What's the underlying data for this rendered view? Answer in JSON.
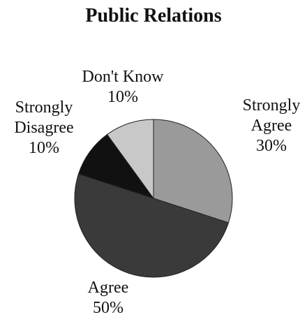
{
  "chart_data": {
    "type": "pie",
    "title": "Public Relations",
    "slices": [
      {
        "label": "Strongly Agree",
        "value": 30,
        "value_label": "30%",
        "color": "#9a9a9a"
      },
      {
        "label": "Agree",
        "value": 50,
        "value_label": "50%",
        "color": "#3a3a3a"
      },
      {
        "label": "Strongly Disagree",
        "value": 10,
        "value_label": "10%",
        "color": "#111111"
      },
      {
        "label": "Don't Know",
        "value": 10,
        "value_label": "10%",
        "color": "#c8c8c8"
      }
    ],
    "start_angle": "12 o'clock",
    "direction": "clockwise",
    "legend": "none",
    "labels": "outside slices, label over percentage"
  }
}
